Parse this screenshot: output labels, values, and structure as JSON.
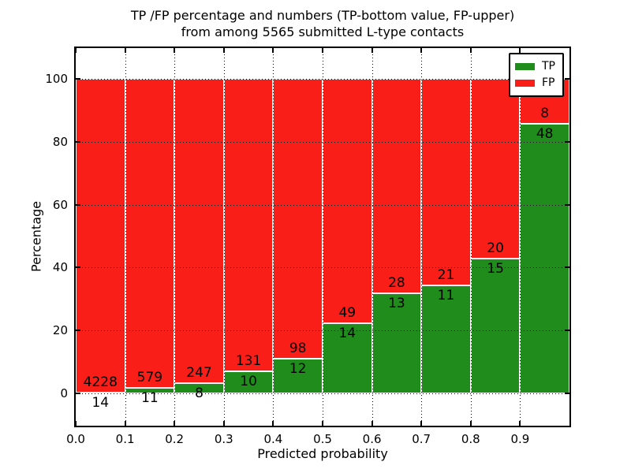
{
  "title": {
    "line1": "TP /FP percentage and numbers (TP-bottom value, FP-upper)",
    "line2": "from among 5565 submitted L-type contacts"
  },
  "axes": {
    "xlabel": "Predicted probability",
    "ylabel": "Percentage",
    "xtick_labels": [
      "0.0",
      "0.1",
      "0.2",
      "0.3",
      "0.4",
      "0.5",
      "0.6",
      "0.7",
      "0.8",
      "0.9"
    ],
    "ytick_values": [
      0,
      20,
      40,
      60,
      80,
      100
    ],
    "ylim": [
      -10,
      110
    ],
    "xlim": [
      0.0,
      1.0
    ],
    "grid": "dotted"
  },
  "legend": {
    "position": "upper-right",
    "entries": [
      {
        "label": "TP",
        "color": "#1f8c1c"
      },
      {
        "label": "FP",
        "color": "#fa1e19"
      }
    ]
  },
  "colors": {
    "tp": "#1f8c1c",
    "fp": "#fa1e19",
    "background": "#ffffff",
    "text": "#000000",
    "bar_edge": "#ffffff"
  },
  "chart_data": {
    "type": "bar",
    "stacked": true,
    "normalized_to_percent": true,
    "title": "TP /FP percentage and numbers (TP-bottom value, FP-upper) from among 5565 submitted L-type contacts",
    "xlabel": "Predicted probability",
    "ylabel": "Percentage",
    "total_contacts": 5565,
    "bin_starts": [
      0.0,
      0.1,
      0.2,
      0.3,
      0.4,
      0.5,
      0.6,
      0.7,
      0.8,
      0.9
    ],
    "bin_width": 0.1,
    "categories": [
      "0.0-0.1",
      "0.1-0.2",
      "0.2-0.3",
      "0.3-0.4",
      "0.4-0.5",
      "0.5-0.6",
      "0.6-0.7",
      "0.7-0.8",
      "0.8-0.9",
      "0.9-1.0"
    ],
    "series": [
      {
        "name": "TP",
        "counts": [
          14,
          11,
          8,
          10,
          12,
          14,
          13,
          11,
          15,
          48
        ]
      },
      {
        "name": "FP",
        "counts": [
          4228,
          579,
          247,
          131,
          98,
          49,
          28,
          21,
          20,
          8
        ]
      }
    ],
    "tp_percent": [
      0.33,
      1.86,
      3.14,
      7.09,
      10.91,
      22.22,
      31.71,
      34.38,
      42.86,
      85.71
    ]
  }
}
